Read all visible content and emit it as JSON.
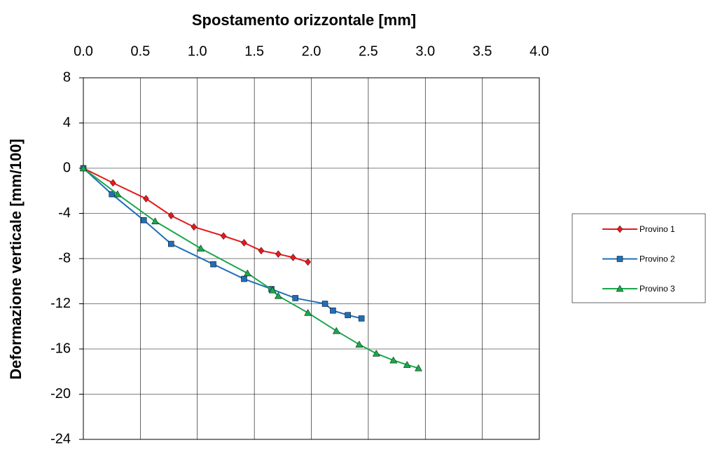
{
  "chart_data": {
    "type": "line",
    "x_label": "Spostamento orizzontale [mm]",
    "y_label": "Deformazione verticale [mm/100]",
    "xlim": [
      0,
      4
    ],
    "ylim": [
      -24,
      8
    ],
    "xticks": [
      {
        "value": 0,
        "label": "0.0"
      },
      0.5,
      {
        "value": 1,
        "label": "1.0"
      },
      1.5,
      {
        "value": 2,
        "label": "2.0"
      },
      2.5,
      {
        "value": 3,
        "label": "3.0"
      },
      3.5,
      {
        "value": 4,
        "label": "4.0"
      }
    ],
    "yticks": [
      8,
      4,
      0,
      -4,
      -8,
      -12,
      -16,
      -20,
      -24
    ],
    "x_axis_position": "top",
    "grid": true,
    "legend": "right",
    "series": [
      {
        "name": "Provino 1",
        "color": "#e41a1c",
        "marker": "diamond",
        "x": [
          0,
          0.26,
          0.55,
          0.77,
          0.97,
          1.23,
          1.41,
          1.56,
          1.71,
          1.84,
          1.97
        ],
        "values": [
          0,
          -1.3,
          -2.7,
          -4.2,
          -5.2,
          -6.0,
          -6.6,
          -7.3,
          -7.6,
          -7.9,
          -8.3
        ]
      },
      {
        "name": "Provino 2",
        "color": "#1f6fb8",
        "marker": "square",
        "x": [
          0,
          0.25,
          0.53,
          0.77,
          1.14,
          1.41,
          1.65,
          1.86,
          2.12,
          2.19,
          2.32,
          2.44
        ],
        "values": [
          0,
          -2.3,
          -4.6,
          -6.7,
          -8.5,
          -9.8,
          -10.7,
          -11.5,
          -12.0,
          -12.6,
          -13.0,
          -13.3
        ]
      },
      {
        "name": "Provino 3",
        "color": "#1aa84a",
        "marker": "triangle",
        "x": [
          0,
          0.3,
          0.63,
          1.03,
          1.44,
          1.66,
          1.71,
          1.97,
          2.22,
          2.42,
          2.57,
          2.72,
          2.84,
          2.94
        ],
        "values": [
          0,
          -2.3,
          -4.7,
          -7.1,
          -9.3,
          -10.8,
          -11.3,
          -12.8,
          -14.4,
          -15.6,
          -16.4,
          -17.0,
          -17.4,
          -17.7
        ]
      }
    ]
  }
}
